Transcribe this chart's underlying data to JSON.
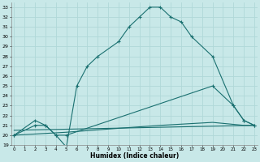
{
  "xlabel": "Humidex (Indice chaleur)",
  "bg_color": "#c8e8e8",
  "line_color": "#1a7070",
  "grid_color": "#b0d8d8",
  "line1_x": [
    0,
    2,
    3,
    4,
    5,
    6,
    7,
    8,
    10,
    11,
    12,
    13,
    14,
    15,
    16,
    17,
    19,
    21,
    22,
    23
  ],
  "line1_y": [
    20,
    21.5,
    21,
    20,
    18.8,
    25,
    27,
    28,
    29.5,
    31,
    32,
    33,
    33,
    32,
    31.5,
    30,
    28,
    23,
    21.5,
    21
  ],
  "line2_x": [
    0,
    2,
    3,
    4,
    5,
    19,
    21,
    22,
    23
  ],
  "line2_y": [
    20,
    21,
    21,
    20,
    20,
    25,
    23,
    21.5,
    21
  ],
  "line3_x": [
    0,
    5,
    10,
    14,
    19,
    22,
    23
  ],
  "line3_y": [
    20,
    20.3,
    20.7,
    21.0,
    21.3,
    21.0,
    21.0
  ],
  "line4_x": [
    0,
    23
  ],
  "line4_y": [
    20.5,
    21.0
  ],
  "xlim": [
    -0.3,
    23.3
  ],
  "ylim": [
    19,
    33.5
  ],
  "xticks": [
    0,
    1,
    2,
    3,
    4,
    5,
    6,
    7,
    8,
    9,
    10,
    11,
    12,
    13,
    14,
    15,
    16,
    17,
    18,
    19,
    20,
    21,
    22,
    23
  ],
  "yticks": [
    19,
    20,
    21,
    22,
    23,
    24,
    25,
    26,
    27,
    28,
    29,
    30,
    31,
    32,
    33
  ]
}
